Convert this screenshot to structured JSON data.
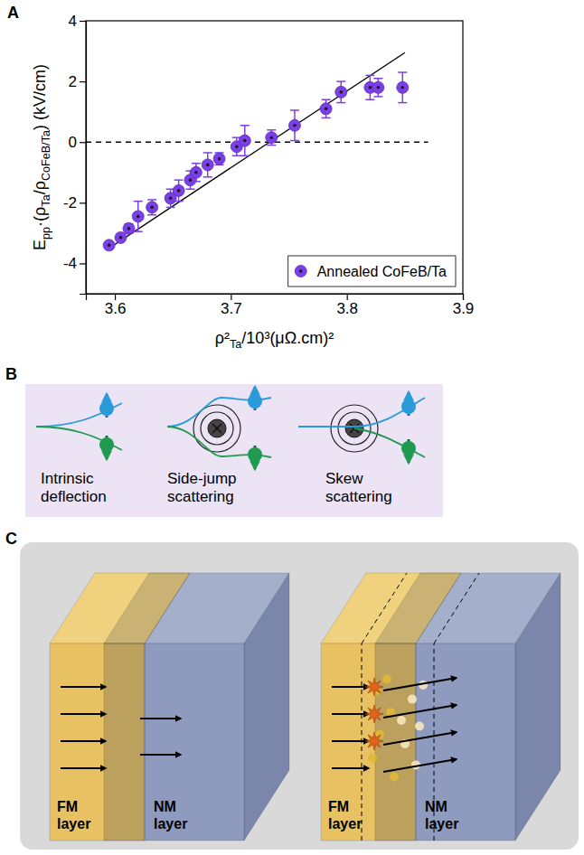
{
  "panel_labels": [
    "A",
    "B",
    "C"
  ],
  "chart_data": {
    "type": "scatter",
    "x_label": [
      "ρ²",
      "Ta",
      "/10³(μΩ.cm)²"
    ],
    "y_label": [
      "E",
      "pp",
      "·(ρ",
      "Ta",
      "/ρ",
      "CoFeB/Ta",
      ") (kV/cm)"
    ],
    "xlim": [
      3.575,
      3.9
    ],
    "xticks": [
      3.6,
      3.7,
      3.8,
      3.9
    ],
    "ylim": [
      -5,
      4
    ],
    "yticks": [
      -4,
      -2,
      0,
      2,
      4
    ],
    "legend": "lower right",
    "series": [
      {
        "name": "Annealed CoFeB/Ta",
        "type": "scatter",
        "color": "#7b3fe8",
        "marker": "circle",
        "x": [
          3.595,
          3.605,
          3.612,
          3.62,
          3.632,
          3.648,
          3.655,
          3.665,
          3.67,
          3.68,
          3.69,
          3.705,
          3.712,
          3.735,
          3.755,
          3.782,
          3.795,
          3.82,
          3.827,
          3.848
        ],
        "values": [
          -3.4,
          -3.15,
          -2.85,
          -2.45,
          -2.15,
          -1.85,
          -1.6,
          -1.25,
          -1.0,
          -0.75,
          -0.55,
          -0.15,
          0.05,
          0.15,
          0.55,
          1.1,
          1.65,
          1.8,
          1.8,
          1.8
        ],
        "errors": [
          0.1,
          0.1,
          0.15,
          0.5,
          0.25,
          0.3,
          0.35,
          0.3,
          0.3,
          0.4,
          0.2,
          0.3,
          0.5,
          0.25,
          0.5,
          0.3,
          0.35,
          0.4,
          0.3,
          0.5
        ]
      },
      {
        "type": "line",
        "color": "#000000",
        "line_style": "solid",
        "x": [
          3.597,
          3.85
        ],
        "values": [
          -3.45,
          2.95
        ]
      },
      {
        "type": "line",
        "color": "#000000",
        "line_style": "dashed",
        "x": [
          3.575,
          3.87
        ],
        "values": [
          0,
          0
        ]
      }
    ]
  },
  "diagram_b": {
    "mechanisms": [
      "Intrinsic deflection",
      "Side-jump scattering",
      "Skew scattering"
    ]
  },
  "diagram_c": {
    "panels": [
      {
        "layers": [
          "FM layer",
          "NM layer"
        ]
      },
      {
        "layers": [
          "FM layer",
          "NM layer"
        ]
      }
    ]
  }
}
